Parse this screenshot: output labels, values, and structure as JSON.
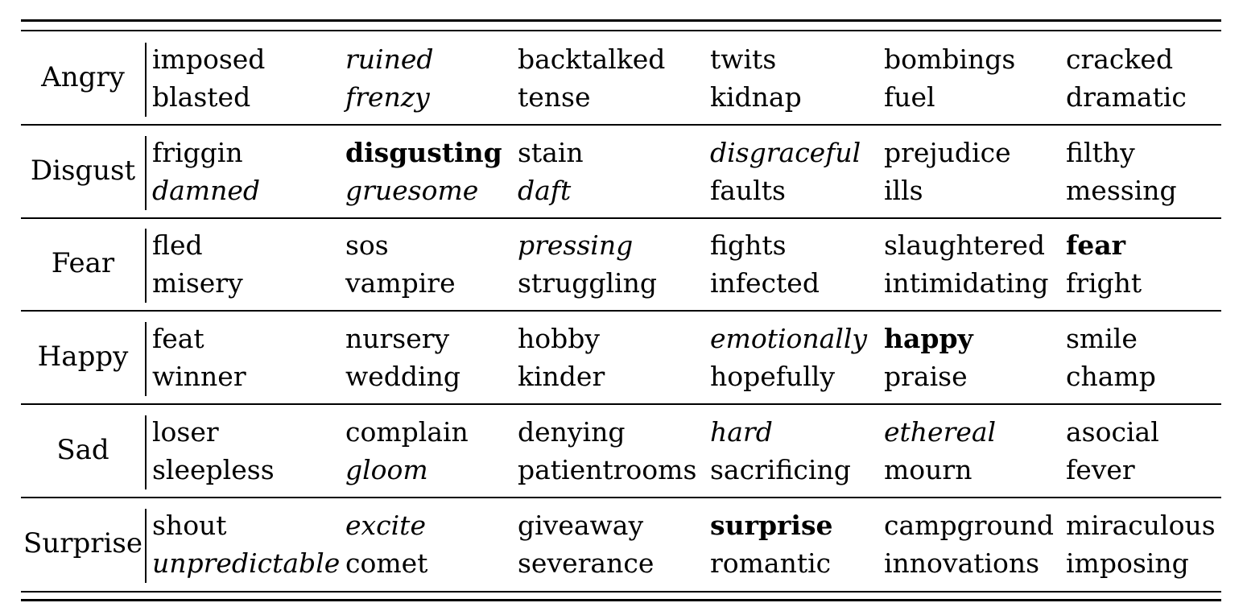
{
  "table": {
    "rows": [
      {
        "label": "Angry",
        "line1": [
          {
            "text": "imposed",
            "style": "normal"
          },
          {
            "text": "ruined",
            "style": "italic"
          },
          {
            "text": "backtalked",
            "style": "normal"
          },
          {
            "text": "twits",
            "style": "normal"
          },
          {
            "text": "bombings",
            "style": "normal"
          },
          {
            "text": "cracked",
            "style": "normal"
          }
        ],
        "line2": [
          {
            "text": "blasted",
            "style": "normal"
          },
          {
            "text": "frenzy",
            "style": "italic"
          },
          {
            "text": "tense",
            "style": "normal"
          },
          {
            "text": "kidnap",
            "style": "normal"
          },
          {
            "text": "fuel",
            "style": "normal"
          },
          {
            "text": "dramatic",
            "style": "normal"
          }
        ]
      },
      {
        "label": "Disgust",
        "line1": [
          {
            "text": "friggin",
            "style": "normal"
          },
          {
            "text": "disgusting",
            "style": "bold"
          },
          {
            "text": "stain",
            "style": "normal"
          },
          {
            "text": "disgraceful",
            "style": "italic"
          },
          {
            "text": "prejudice",
            "style": "normal"
          },
          {
            "text": "filthy",
            "style": "normal"
          }
        ],
        "line2": [
          {
            "text": "damned",
            "style": "italic"
          },
          {
            "text": "gruesome",
            "style": "italic"
          },
          {
            "text": "daft",
            "style": "italic"
          },
          {
            "text": "faults",
            "style": "normal"
          },
          {
            "text": "ills",
            "style": "normal"
          },
          {
            "text": "messing",
            "style": "normal"
          }
        ]
      },
      {
        "label": "Fear",
        "line1": [
          {
            "text": "fled",
            "style": "normal"
          },
          {
            "text": "sos",
            "style": "normal"
          },
          {
            "text": "pressing",
            "style": "italic"
          },
          {
            "text": "fights",
            "style": "normal"
          },
          {
            "text": "slaughtered",
            "style": "normal"
          },
          {
            "text": "fear",
            "style": "bold"
          }
        ],
        "line2": [
          {
            "text": "misery",
            "style": "normal"
          },
          {
            "text": "vampire",
            "style": "normal"
          },
          {
            "text": "struggling",
            "style": "normal"
          },
          {
            "text": "infected",
            "style": "normal"
          },
          {
            "text": "intimidating",
            "style": "normal"
          },
          {
            "text": "fright",
            "style": "normal"
          }
        ]
      },
      {
        "label": "Happy",
        "line1": [
          {
            "text": "feat",
            "style": "normal"
          },
          {
            "text": "nursery",
            "style": "normal"
          },
          {
            "text": "hobby",
            "style": "normal"
          },
          {
            "text": "emotionally",
            "style": "italic"
          },
          {
            "text": "happy",
            "style": "bold"
          },
          {
            "text": "smile",
            "style": "normal"
          }
        ],
        "line2": [
          {
            "text": "winner",
            "style": "normal"
          },
          {
            "text": "wedding",
            "style": "normal"
          },
          {
            "text": "kinder",
            "style": "normal"
          },
          {
            "text": "hopefully",
            "style": "normal"
          },
          {
            "text": "praise",
            "style": "normal"
          },
          {
            "text": "champ",
            "style": "normal"
          }
        ]
      },
      {
        "label": "Sad",
        "line1": [
          {
            "text": "loser",
            "style": "normal"
          },
          {
            "text": "complain",
            "style": "normal"
          },
          {
            "text": "denying",
            "style": "normal"
          },
          {
            "text": "hard",
            "style": "italic"
          },
          {
            "text": "ethereal",
            "style": "italic"
          },
          {
            "text": "asocial",
            "style": "normal"
          }
        ],
        "line2": [
          {
            "text": "sleepless",
            "style": "normal"
          },
          {
            "text": "gloom",
            "style": "italic"
          },
          {
            "text": "patientrooms",
            "style": "normal"
          },
          {
            "text": "sacrificing",
            "style": "normal"
          },
          {
            "text": "mourn",
            "style": "normal"
          },
          {
            "text": "fever",
            "style": "normal"
          }
        ]
      },
      {
        "label": "Surprise",
        "line1": [
          {
            "text": "shout",
            "style": "normal"
          },
          {
            "text": "excite",
            "style": "italic"
          },
          {
            "text": "giveaway",
            "style": "normal"
          },
          {
            "text": "surprise",
            "style": "bold"
          },
          {
            "text": "campground",
            "style": "normal"
          },
          {
            "text": "miraculous",
            "style": "normal"
          }
        ],
        "line2": [
          {
            "text": "unpredictable",
            "style": "italic"
          },
          {
            "text": "comet",
            "style": "normal"
          },
          {
            "text": "severance",
            "style": "normal"
          },
          {
            "text": "romantic",
            "style": "normal"
          },
          {
            "text": "innovations",
            "style": "normal"
          },
          {
            "text": "imposing",
            "style": "normal"
          }
        ]
      }
    ]
  }
}
